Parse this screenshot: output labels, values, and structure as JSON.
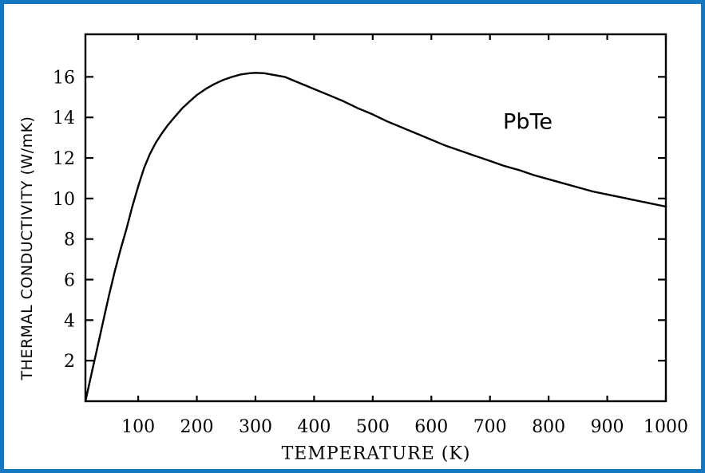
{
  "frame": {
    "border_color": "#1577c0",
    "background_color": "#ffffff"
  },
  "chart_data": {
    "type": "line",
    "title": "",
    "xlabel": "TEMPERATURE (K)",
    "ylabel": "THERMAL CONDUCTIVITY (W/mK)",
    "series_label": "PbTe",
    "xlim": [
      10,
      1000
    ],
    "ylim": [
      0,
      18.1
    ],
    "xticks": [
      100,
      200,
      300,
      400,
      500,
      600,
      700,
      800,
      900,
      1000
    ],
    "yticks": [
      2,
      4,
      6,
      8,
      10,
      12,
      14,
      16
    ],
    "grid": false,
    "legend_position": "none",
    "line_color": "#000000",
    "axis_color": "#000000",
    "annotation": {
      "text": "PbTe",
      "x": 758,
      "y": 13.8
    },
    "series": [
      {
        "name": "PbTe thermal conductivity",
        "points": [
          [
            10,
            0
          ],
          [
            20,
            1.3
          ],
          [
            30,
            2.6
          ],
          [
            40,
            3.9
          ],
          [
            50,
            5.2
          ],
          [
            60,
            6.4
          ],
          [
            70,
            7.5
          ],
          [
            80,
            8.5
          ],
          [
            90,
            9.6
          ],
          [
            100,
            10.6
          ],
          [
            110,
            11.5
          ],
          [
            120,
            12.2
          ],
          [
            130,
            12.75
          ],
          [
            140,
            13.2
          ],
          [
            150,
            13.6
          ],
          [
            160,
            13.95
          ],
          [
            175,
            14.45
          ],
          [
            190,
            14.85
          ],
          [
            200,
            15.1
          ],
          [
            215,
            15.4
          ],
          [
            230,
            15.65
          ],
          [
            245,
            15.85
          ],
          [
            260,
            16.0
          ],
          [
            275,
            16.12
          ],
          [
            290,
            16.18
          ],
          [
            300,
            16.2
          ],
          [
            315,
            16.18
          ],
          [
            330,
            16.1
          ],
          [
            350,
            16.0
          ],
          [
            375,
            15.7
          ],
          [
            400,
            15.4
          ],
          [
            425,
            15.1
          ],
          [
            450,
            14.8
          ],
          [
            475,
            14.45
          ],
          [
            500,
            14.15
          ],
          [
            525,
            13.8
          ],
          [
            550,
            13.5
          ],
          [
            575,
            13.2
          ],
          [
            600,
            12.9
          ],
          [
            625,
            12.6
          ],
          [
            650,
            12.35
          ],
          [
            675,
            12.1
          ],
          [
            700,
            11.85
          ],
          [
            725,
            11.6
          ],
          [
            750,
            11.4
          ],
          [
            775,
            11.15
          ],
          [
            800,
            10.95
          ],
          [
            825,
            10.75
          ],
          [
            850,
            10.55
          ],
          [
            875,
            10.35
          ],
          [
            900,
            10.2
          ],
          [
            925,
            10.05
          ],
          [
            950,
            9.9
          ],
          [
            975,
            9.75
          ],
          [
            1000,
            9.6
          ]
        ]
      }
    ]
  }
}
